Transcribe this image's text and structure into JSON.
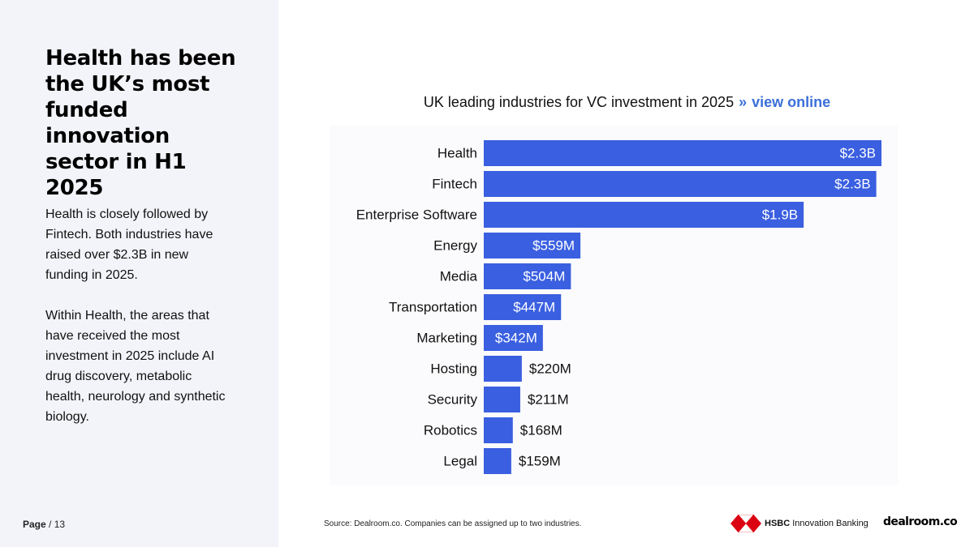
{
  "left": {
    "headline": "Health has been the UK’s most funded innovation sector in H1 2025",
    "paragraph1": "Health is closely followed by Fintech. Both industries have raised over $2.3B in new funding in 2025.",
    "paragraph2": "Within Health, the areas that have received the most investment in 2025 include AI drug discovery, metabolic health, neurology and synthetic biology."
  },
  "footer": {
    "page_label": "Page",
    "page_sep": "/",
    "page_number": "13",
    "source": "Source:  Dealroom.co. Companies can be assigned up to two industries.",
    "hsbc_bold": "HSBC",
    "hsbc_rest": "Innovation Banking",
    "dealroom": "dealroom.co"
  },
  "chart_data": {
    "type": "bar",
    "orientation": "horizontal",
    "title": "UK leading industries for VC investment in 2025",
    "title_link": "view online",
    "title_link_prefix": "»",
    "categories": [
      "Health",
      "Fintech",
      "Enterprise Software",
      "Energy",
      "Media",
      "Transportation",
      "Marketing",
      "Hosting",
      "Security",
      "Robotics",
      "Legal"
    ],
    "values": [
      2300,
      2270,
      1850,
      559,
      504,
      447,
      342,
      220,
      211,
      168,
      159
    ],
    "value_labels": [
      "$2.3B",
      "$2.3B",
      "$1.9B",
      "$559M",
      "$504M",
      "$447M",
      "$342M",
      "$220M",
      "$211M",
      "$168M",
      "$159M"
    ],
    "unit": "USD millions",
    "xlim": [
      0,
      2300
    ],
    "bar_color": "#3a5fe0",
    "grid": false,
    "legend": "none"
  },
  "colors": {
    "left_panel": "#f3f4fa",
    "link": "#3a6fd8",
    "hsbc_red": "#db0011"
  }
}
